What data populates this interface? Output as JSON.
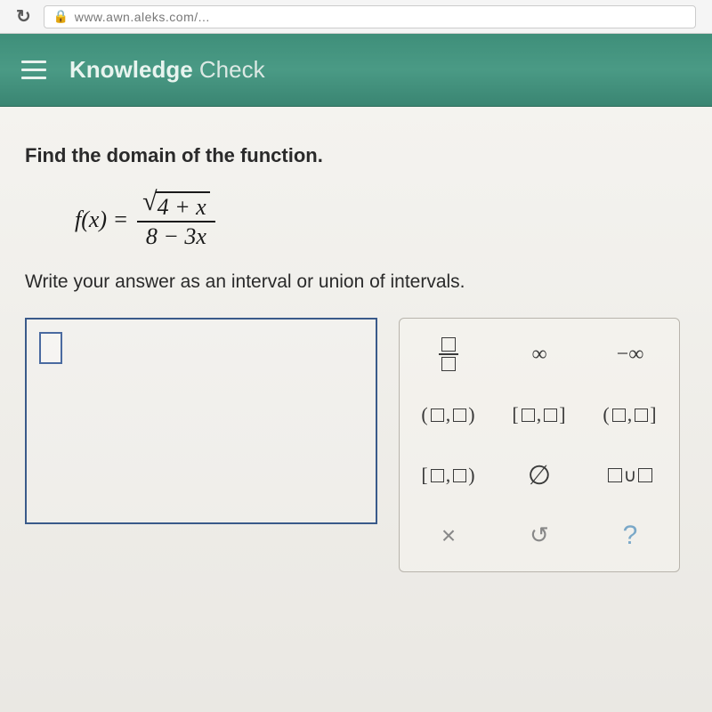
{
  "browser": {
    "url_fragment": "www.awn.aleks.com/..."
  },
  "header": {
    "title_bold": "Knowledge",
    "title_light": " Check"
  },
  "problem": {
    "instruction": "Find the domain of the function.",
    "lhs": "f(x) =",
    "sqrt_inner": "4 + x",
    "denominator": "8 − 3x",
    "sub_instruction": "Write your answer as an interval or union of intervals."
  },
  "keypad": {
    "infinity": "∞",
    "neg_infinity": "−∞",
    "open_open_l": "(",
    "open_open_r": ")",
    "closed_closed_l": "[",
    "closed_closed_r": "]",
    "open_closed_l": "(",
    "open_closed_r": "]",
    "closed_open_l": "[",
    "closed_open_r": ")",
    "empty_set": "∅",
    "union_sym": "∪",
    "clear": "×",
    "undo": "↺",
    "help": "?"
  },
  "colors": {
    "header_bg": "#4a9a85",
    "header_text": "#e8f4ef",
    "answer_border": "#3a5a8a",
    "body_bg": "#eae8e3"
  }
}
